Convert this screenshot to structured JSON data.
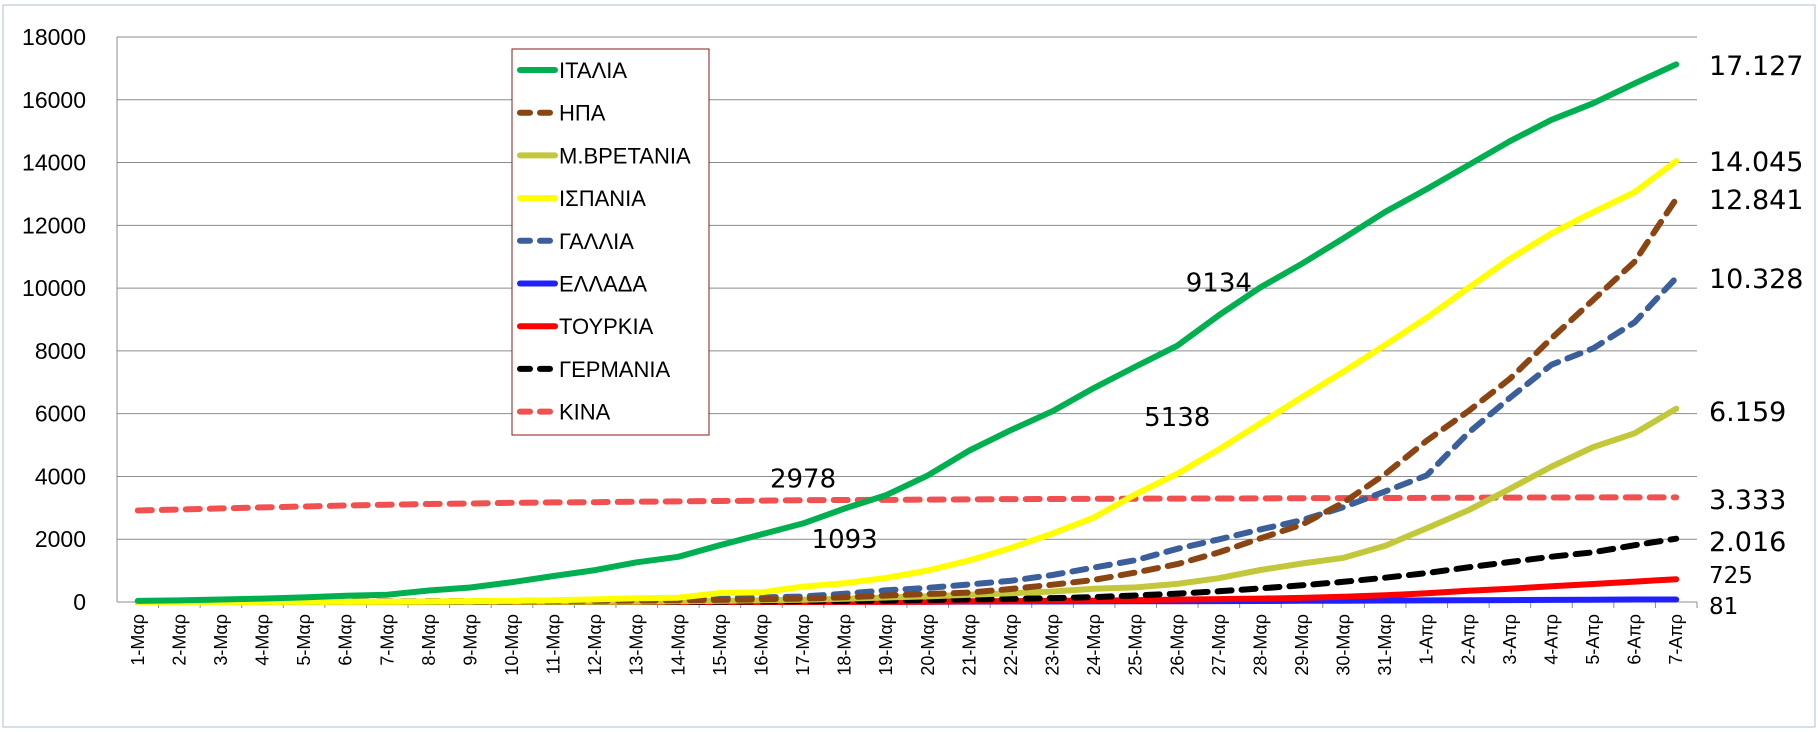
{
  "chart_data": {
    "type": "line",
    "title": "",
    "xlabel": "",
    "ylabel": "",
    "ylim": [
      0,
      18000
    ],
    "yticks": [
      0,
      2000,
      4000,
      6000,
      8000,
      10000,
      12000,
      14000,
      16000,
      18000
    ],
    "grid": "horizontal",
    "legend_position": "top-left-inside",
    "categories": [
      "1-Μαρ",
      "2-Μαρ",
      "3-Μαρ",
      "4-Μαρ",
      "5-Μαρ",
      "6-Μαρ",
      "7-Μαρ",
      "8-Μαρ",
      "9-Μαρ",
      "10-Μαρ",
      "11-Μαρ",
      "12-Μαρ",
      "13-Μαρ",
      "14-Μαρ",
      "15-Μαρ",
      "16-Μαρ",
      "17-Μαρ",
      "18-Μαρ",
      "19-Μαρ",
      "20-Μαρ",
      "21-Μαρ",
      "22-Μαρ",
      "23-Μαρ",
      "24-Μαρ",
      "25-Μαρ",
      "26-Μαρ",
      "27-Μαρ",
      "28-Μαρ",
      "29-Μαρ",
      "30-Μαρ",
      "31-Μαρ",
      "1-Απρ",
      "2-Απρ",
      "3-Απρ",
      "4-Απρ",
      "5-Απρ",
      "6-Απρ",
      "7-Απρ"
    ],
    "series": [
      {
        "name": "ΙΤΑΛΙΑ",
        "color": "#00b050",
        "dash": "solid",
        "values": [
          34,
          52,
          79,
          107,
          148,
          197,
          233,
          366,
          463,
          631,
          827,
          1016,
          1266,
          1441,
          1809,
          2158,
          2503,
          2978,
          3405,
          4032,
          4825,
          5476,
          6077,
          6820,
          7503,
          8165,
          9134,
          10023,
          10779,
          11591,
          12428,
          13155,
          13915,
          14681,
          15362,
          15887,
          16523,
          17127
        ],
        "end_label": "17.127"
      },
      {
        "name": "ΗΠΑ",
        "color": "#8b4513",
        "dash": "dashed",
        "values": [
          1,
          6,
          9,
          11,
          12,
          15,
          19,
          22,
          26,
          30,
          38,
          41,
          48,
          57,
          68,
          86,
          109,
          150,
          206,
          255,
          301,
          413,
          551,
          705,
          941,
          1209,
          1581,
          2026,
          2467,
          3170,
          4076,
          5138,
          6080,
          7110,
          8400,
          9620,
          10840,
          12841
        ],
        "end_label": "12.841"
      },
      {
        "name": "Μ.ΒΡΕΤΑΝΙΑ",
        "color": "#c3c83a",
        "dash": "solid",
        "values": [
          0,
          0,
          0,
          0,
          0,
          1,
          2,
          2,
          3,
          7,
          8,
          8,
          10,
          21,
          35,
          55,
          71,
          104,
          144,
          177,
          233,
          281,
          335,
          422,
          465,
          578,
          759,
          1019,
          1228,
          1408,
          1789,
          2352,
          2921,
          3605,
          4313,
          4934,
          5373,
          6159
        ],
        "end_label": "6.159"
      },
      {
        "name": "ΙΣΠΑΝΙΑ",
        "color": "#ffff00",
        "dash": "solid",
        "values": [
          0,
          0,
          1,
          2,
          3,
          5,
          10,
          17,
          28,
          35,
          54,
          84,
          121,
          136,
          288,
          309,
          491,
          598,
          767,
          1002,
          1326,
          1720,
          2182,
          2696,
          3434,
          4089,
          4858,
          5690,
          6528,
          7340,
          8189,
          9053,
          10003,
          10935,
          11744,
          12418,
          13055,
          14045
        ],
        "end_label": "14.045"
      },
      {
        "name": "ΓΑΛΛΙΑ",
        "color": "#3a5f9a",
        "dash": "dashed",
        "values": [
          2,
          2,
          3,
          4,
          4,
          9,
          16,
          19,
          25,
          33,
          48,
          61,
          79,
          91,
          127,
          148,
          175,
          264,
          372,
          450,
          562,
          674,
          860,
          1100,
          1331,
          1696,
          1995,
          2314,
          2606,
          3024,
          3523,
          4032,
          5387,
          6507,
          7560,
          8078,
          8911,
          10328
        ],
        "end_label": "10.328"
      },
      {
        "name": "ΕΛΛΑΔΑ",
        "color": "#2020ff",
        "dash": "solid",
        "values": [
          0,
          0,
          0,
          0,
          0,
          0,
          0,
          0,
          0,
          0,
          1,
          1,
          1,
          3,
          4,
          4,
          5,
          5,
          6,
          6,
          13,
          15,
          17,
          20,
          22,
          26,
          28,
          32,
          38,
          43,
          49,
          50,
          53,
          59,
          68,
          73,
          79,
          81
        ],
        "end_label": "81"
      },
      {
        "name": "ΤΟΥΡΚΙΑ",
        "color": "#ff0000",
        "dash": "solid",
        "values": [
          0,
          0,
          0,
          0,
          0,
          0,
          0,
          0,
          0,
          0,
          0,
          0,
          0,
          0,
          0,
          0,
          1,
          2,
          4,
          9,
          21,
          30,
          37,
          44,
          59,
          75,
          92,
          108,
          131,
          168,
          214,
          277,
          356,
          425,
          501,
          574,
          649,
          725
        ],
        "end_label": "725"
      },
      {
        "name": "ΓΕΡΜΑΝΙΑ",
        "color": "#000000",
        "dash": "dashed",
        "values": [
          0,
          0,
          0,
          0,
          0,
          0,
          0,
          0,
          2,
          2,
          3,
          3,
          7,
          9,
          11,
          17,
          24,
          28,
          44,
          67,
          84,
          94,
          123,
          157,
          206,
          267,
          342,
          433,
          533,
          645,
          775,
          920,
          1107,
          1275,
          1444,
          1584,
          1810,
          2016
        ],
        "end_label": "2.016"
      },
      {
        "name": "ΚΙΝΑ",
        "color": "#f05050",
        "dash": "dashed",
        "values": [
          2915,
          2946,
          2983,
          3015,
          3044,
          3073,
          3099,
          3123,
          3139,
          3161,
          3172,
          3180,
          3194,
          3204,
          3218,
          3231,
          3242,
          3250,
          3253,
          3261,
          3270,
          3277,
          3281,
          3287,
          3292,
          3295,
          3298,
          3301,
          3306,
          3310,
          3313,
          3316,
          3322,
          3326,
          3330,
          3331,
          3331,
          3333
        ],
        "end_label": "3.333"
      }
    ],
    "annotations": [
      {
        "text": "9134",
        "x": "27-Μαρ",
        "y": 9900
      },
      {
        "text": "5138",
        "x": "26-Μαρ",
        "y": 5600
      },
      {
        "text": "2978",
        "x": "17-Μαρ",
        "y": 3650
      },
      {
        "text": "1093",
        "x": "18-Μαρ",
        "y": 1720
      }
    ]
  }
}
